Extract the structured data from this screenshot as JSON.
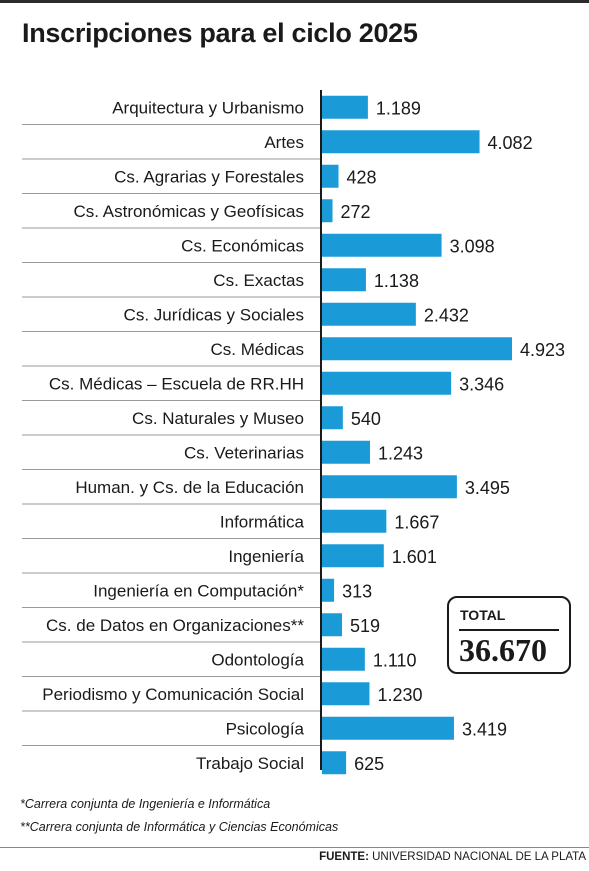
{
  "chart_data": {
    "type": "bar",
    "orientation": "horizontal",
    "title": "Inscripciones para el ciclo 2025",
    "categories": [
      "Arquitectura y Urbanismo",
      "Artes",
      "Cs. Agrarias y Forestales",
      "Cs. Astronómicas y Geofísicas",
      "Cs. Económicas",
      "Cs. Exactas",
      "Cs. Jurídicas y Sociales",
      "Cs. Médicas",
      "Cs. Médicas – Escuela de RR.HH",
      "Cs. Naturales y Museo",
      "Cs. Veterinarias",
      "Human. y Cs. de la Educación",
      "Informática",
      "Ingeniería",
      "Ingeniería en Computación*",
      "Cs. de Datos en Organizaciones**",
      "Odontología",
      "Periodismo y Comunicación Social",
      "Psicología",
      "Trabajo Social"
    ],
    "values": [
      1189,
      4082,
      428,
      272,
      3098,
      1138,
      2432,
      4923,
      3346,
      540,
      1243,
      3495,
      1667,
      1601,
      313,
      519,
      1110,
      1230,
      3419,
      625
    ],
    "value_labels": [
      "1.189",
      "4.082",
      "428",
      "272",
      "3.098",
      "1.138",
      "2.432",
      "4.923",
      "3.346",
      "540",
      "1.243",
      "3.495",
      "1.667",
      "1.601",
      "313",
      "519",
      "1.110",
      "1.230",
      "3.419",
      "625"
    ],
    "xlim": [
      0,
      4923
    ],
    "grid": false,
    "bar_color": "#1a9ad7",
    "total": {
      "label": "TOTAL",
      "value": "36.670"
    },
    "notes": [
      "*Carrera conjunta de Ingeniería e Informática",
      "**Carrera conjunta de Informática y Ciencias Económicas"
    ],
    "source": {
      "label": "FUENTE:",
      "text": "UNIVERSIDAD NACIONAL DE LA PLATA"
    }
  }
}
